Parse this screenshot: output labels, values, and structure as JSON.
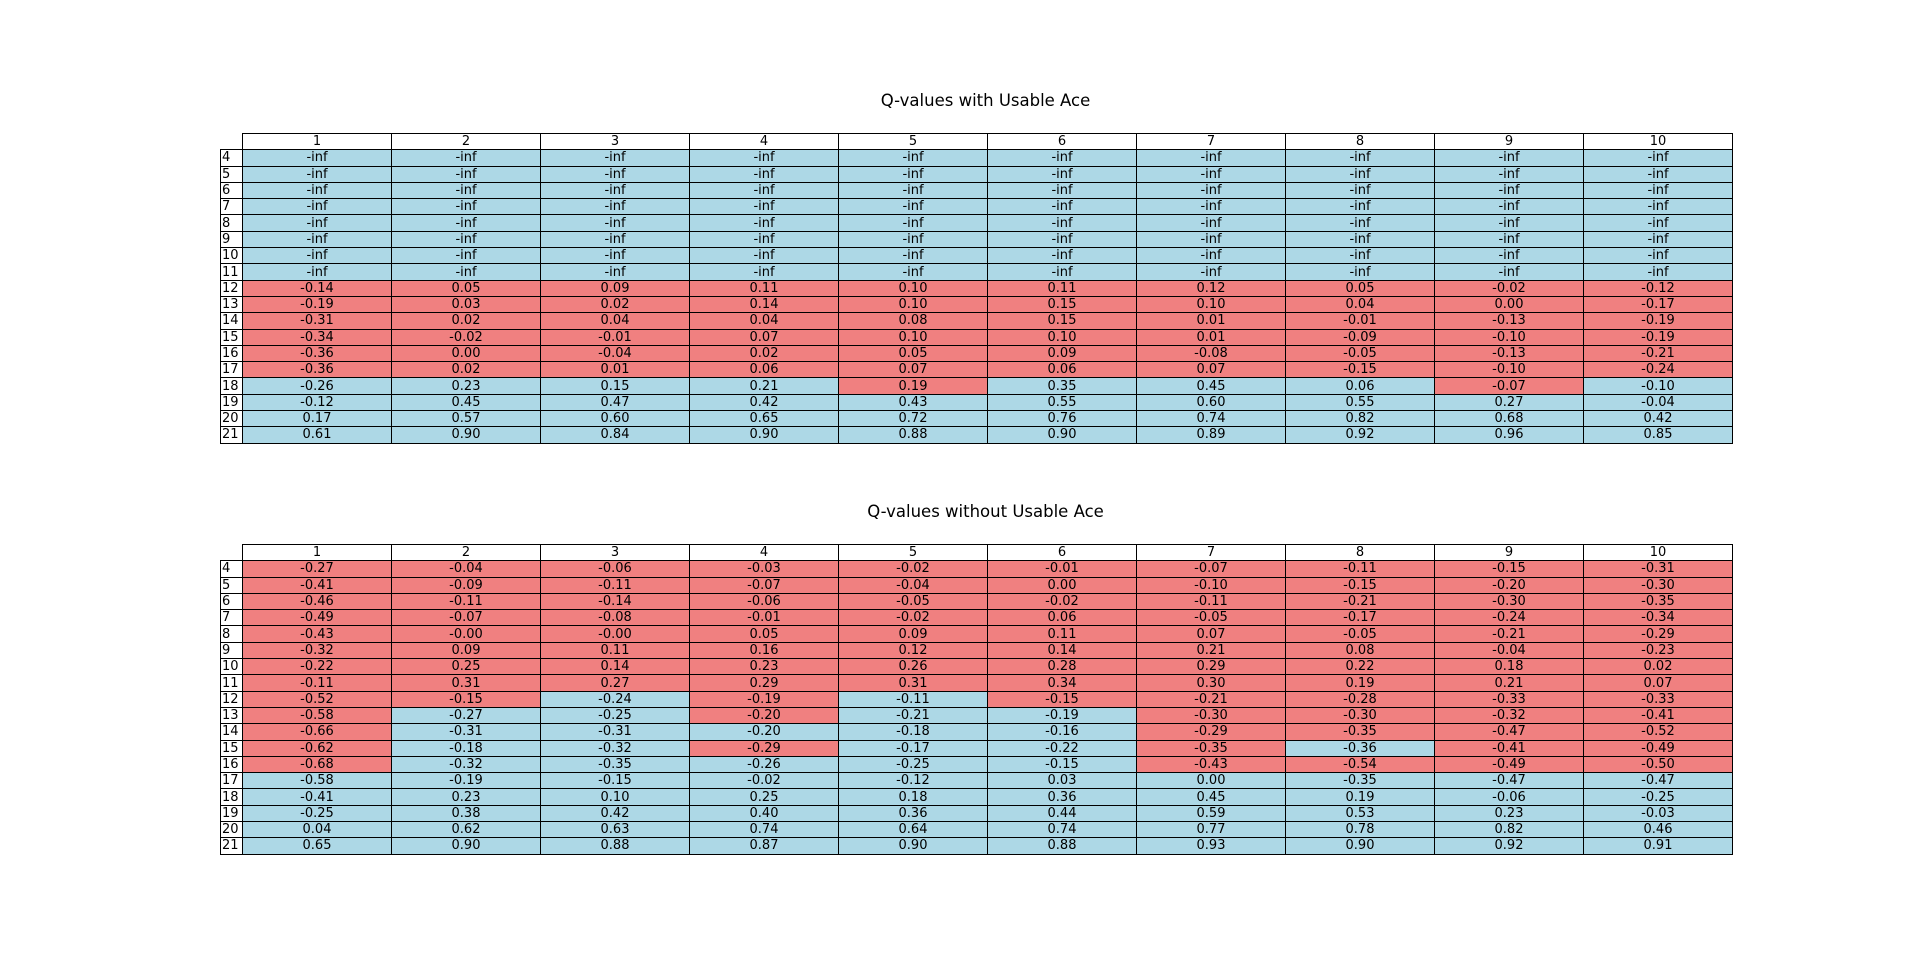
{
  "colors": {
    "positive": "#add8e6",
    "negative": "#f08080"
  },
  "tables": [
    {
      "title": "Q-values with Usable Ace",
      "columns": [
        "1",
        "2",
        "3",
        "4",
        "5",
        "6",
        "7",
        "8",
        "9",
        "10"
      ],
      "rows": [
        "4",
        "5",
        "6",
        "7",
        "8",
        "9",
        "10",
        "11",
        "12",
        "13",
        "14",
        "15",
        "16",
        "17",
        "18",
        "19",
        "20",
        "21"
      ],
      "values": [
        [
          "-inf",
          "-inf",
          "-inf",
          "-inf",
          "-inf",
          "-inf",
          "-inf",
          "-inf",
          "-inf",
          "-inf"
        ],
        [
          "-inf",
          "-inf",
          "-inf",
          "-inf",
          "-inf",
          "-inf",
          "-inf",
          "-inf",
          "-inf",
          "-inf"
        ],
        [
          "-inf",
          "-inf",
          "-inf",
          "-inf",
          "-inf",
          "-inf",
          "-inf",
          "-inf",
          "-inf",
          "-inf"
        ],
        [
          "-inf",
          "-inf",
          "-inf",
          "-inf",
          "-inf",
          "-inf",
          "-inf",
          "-inf",
          "-inf",
          "-inf"
        ],
        [
          "-inf",
          "-inf",
          "-inf",
          "-inf",
          "-inf",
          "-inf",
          "-inf",
          "-inf",
          "-inf",
          "-inf"
        ],
        [
          "-inf",
          "-inf",
          "-inf",
          "-inf",
          "-inf",
          "-inf",
          "-inf",
          "-inf",
          "-inf",
          "-inf"
        ],
        [
          "-inf",
          "-inf",
          "-inf",
          "-inf",
          "-inf",
          "-inf",
          "-inf",
          "-inf",
          "-inf",
          "-inf"
        ],
        [
          "-inf",
          "-inf",
          "-inf",
          "-inf",
          "-inf",
          "-inf",
          "-inf",
          "-inf",
          "-inf",
          "-inf"
        ],
        [
          "-0.14",
          "0.05",
          "0.09",
          "0.11",
          "0.10",
          "0.11",
          "0.12",
          "0.05",
          "-0.02",
          "-0.12"
        ],
        [
          "-0.19",
          "0.03",
          "0.02",
          "0.14",
          "0.10",
          "0.15",
          "0.10",
          "0.04",
          "0.00",
          "-0.17"
        ],
        [
          "-0.31",
          "0.02",
          "0.04",
          "0.04",
          "0.08",
          "0.15",
          "0.01",
          "-0.01",
          "-0.13",
          "-0.19"
        ],
        [
          "-0.34",
          "-0.02",
          "-0.01",
          "0.07",
          "0.10",
          "0.10",
          "0.01",
          "-0.09",
          "-0.10",
          "-0.19"
        ],
        [
          "-0.36",
          "0.00",
          "-0.04",
          "0.02",
          "0.05",
          "0.09",
          "-0.08",
          "-0.05",
          "-0.13",
          "-0.21"
        ],
        [
          "-0.36",
          "0.02",
          "0.01",
          "0.06",
          "0.07",
          "0.06",
          "0.07",
          "-0.15",
          "-0.10",
          "-0.24"
        ],
        [
          "-0.26",
          "0.23",
          "0.15",
          "0.21",
          "0.19",
          "0.35",
          "0.45",
          "0.06",
          "-0.07",
          "-0.10"
        ],
        [
          "-0.12",
          "0.45",
          "0.47",
          "0.42",
          "0.43",
          "0.55",
          "0.60",
          "0.55",
          "0.27",
          "-0.04"
        ],
        [
          "0.17",
          "0.57",
          "0.60",
          "0.65",
          "0.72",
          "0.76",
          "0.74",
          "0.82",
          "0.68",
          "0.42"
        ],
        [
          "0.61",
          "0.90",
          "0.84",
          "0.90",
          "0.88",
          "0.90",
          "0.89",
          "0.92",
          "0.96",
          "0.85"
        ]
      ],
      "cell_colors": [
        "BBBBBBBBBB",
        "BBBBBBBBBB",
        "BBBBBBBBBB",
        "BBBBBBBBBB",
        "BBBBBBBBBB",
        "BBBBBBBBBB",
        "BBBBBBBBBB",
        "BBBBBBBBBB",
        "RRRRRRRRRR",
        "RRRRRRRRRR",
        "RRRRRRRRRR",
        "RRRRRRRRRR",
        "RRRRRRRRRR",
        "RRRRRRRRRR",
        "BBBBRBBBRB",
        "BBBBBBBBBB",
        "BBBBBBBBBB",
        "BBBBBBBBBB"
      ]
    },
    {
      "title": "Q-values without Usable Ace",
      "columns": [
        "1",
        "2",
        "3",
        "4",
        "5",
        "6",
        "7",
        "8",
        "9",
        "10"
      ],
      "rows": [
        "4",
        "5",
        "6",
        "7",
        "8",
        "9",
        "10",
        "11",
        "12",
        "13",
        "14",
        "15",
        "16",
        "17",
        "18",
        "19",
        "20",
        "21"
      ],
      "values": [
        [
          "-0.27",
          "-0.04",
          "-0.06",
          "-0.03",
          "-0.02",
          "-0.01",
          "-0.07",
          "-0.11",
          "-0.15",
          "-0.31"
        ],
        [
          "-0.41",
          "-0.09",
          "-0.11",
          "-0.07",
          "-0.04",
          "0.00",
          "-0.10",
          "-0.15",
          "-0.20",
          "-0.30"
        ],
        [
          "-0.46",
          "-0.11",
          "-0.14",
          "-0.06",
          "-0.05",
          "-0.02",
          "-0.11",
          "-0.21",
          "-0.30",
          "-0.35"
        ],
        [
          "-0.49",
          "-0.07",
          "-0.08",
          "-0.01",
          "-0.02",
          "0.06",
          "-0.05",
          "-0.17",
          "-0.24",
          "-0.34"
        ],
        [
          "-0.43",
          "-0.00",
          "-0.00",
          "0.05",
          "0.09",
          "0.11",
          "0.07",
          "-0.05",
          "-0.21",
          "-0.29"
        ],
        [
          "-0.32",
          "0.09",
          "0.11",
          "0.16",
          "0.12",
          "0.14",
          "0.21",
          "0.08",
          "-0.04",
          "-0.23"
        ],
        [
          "-0.22",
          "0.25",
          "0.14",
          "0.23",
          "0.26",
          "0.28",
          "0.29",
          "0.22",
          "0.18",
          "0.02"
        ],
        [
          "-0.11",
          "0.31",
          "0.27",
          "0.29",
          "0.31",
          "0.34",
          "0.30",
          "0.19",
          "0.21",
          "0.07"
        ],
        [
          "-0.52",
          "-0.15",
          "-0.24",
          "-0.19",
          "-0.11",
          "-0.15",
          "-0.21",
          "-0.28",
          "-0.33",
          "-0.33"
        ],
        [
          "-0.58",
          "-0.27",
          "-0.25",
          "-0.20",
          "-0.21",
          "-0.19",
          "-0.30",
          "-0.30",
          "-0.32",
          "-0.41"
        ],
        [
          "-0.66",
          "-0.31",
          "-0.31",
          "-0.20",
          "-0.18",
          "-0.16",
          "-0.29",
          "-0.35",
          "-0.47",
          "-0.52"
        ],
        [
          "-0.62",
          "-0.18",
          "-0.32",
          "-0.29",
          "-0.17",
          "-0.22",
          "-0.35",
          "-0.36",
          "-0.41",
          "-0.49"
        ],
        [
          "-0.68",
          "-0.32",
          "-0.35",
          "-0.26",
          "-0.25",
          "-0.15",
          "-0.43",
          "-0.54",
          "-0.49",
          "-0.50"
        ],
        [
          "-0.58",
          "-0.19",
          "-0.15",
          "-0.02",
          "-0.12",
          "0.03",
          "0.00",
          "-0.35",
          "-0.47",
          "-0.47"
        ],
        [
          "-0.41",
          "0.23",
          "0.10",
          "0.25",
          "0.18",
          "0.36",
          "0.45",
          "0.19",
          "-0.06",
          "-0.25"
        ],
        [
          "-0.25",
          "0.38",
          "0.42",
          "0.40",
          "0.36",
          "0.44",
          "0.59",
          "0.53",
          "0.23",
          "-0.03"
        ],
        [
          "0.04",
          "0.62",
          "0.63",
          "0.74",
          "0.64",
          "0.74",
          "0.77",
          "0.78",
          "0.82",
          "0.46"
        ],
        [
          "0.65",
          "0.90",
          "0.88",
          "0.87",
          "0.90",
          "0.88",
          "0.93",
          "0.90",
          "0.92",
          "0.91"
        ]
      ],
      "cell_colors": [
        "RRRRRRRRRR",
        "RRRRRRRRRR",
        "RRRRRRRRRR",
        "RRRRRRRRRR",
        "RRRRRRRRRR",
        "RRRRRRRRRR",
        "RRRRRRRRRR",
        "RRRRRRRRRR",
        "RRBRBRRRRR",
        "RBBRBBRRRR",
        "RBBBBBRRRR",
        "RBBRBBRBRR",
        "RBBBBBRRRR",
        "BBBBBBBBBB",
        "BBBBBBBBBB",
        "BBBBBBBBBB",
        "BBBBBBBBBB",
        "BBBBBBBBBB"
      ]
    }
  ],
  "chart_data": [
    {
      "type": "table",
      "title": "Q-values with Usable Ace"
    },
    {
      "type": "table",
      "title": "Q-values without Usable Ace"
    }
  ]
}
